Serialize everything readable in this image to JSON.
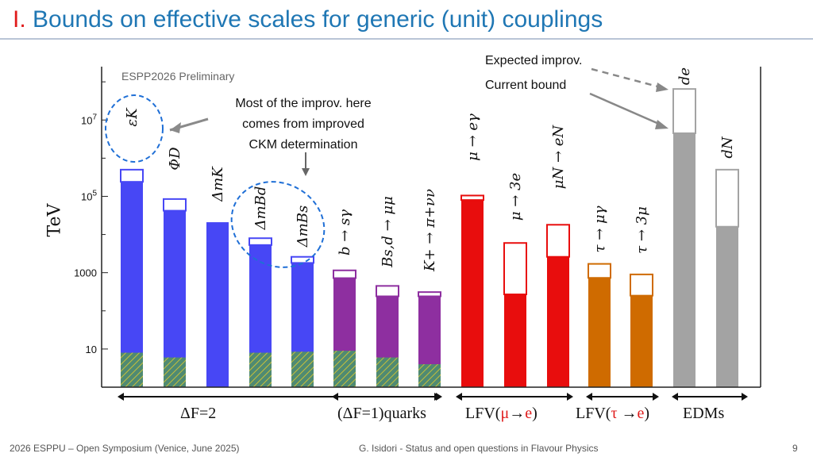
{
  "title": {
    "roman": "I.",
    "text": "Bounds on effective scales for generic (unit) couplings"
  },
  "annotations": {
    "preliminary": "ESPP2026 Preliminary",
    "expected": "Expected  improv.",
    "current": "Current bound",
    "note_lines": [
      "Most of the improv.  here",
      "comes from improved",
      "CKM determination"
    ]
  },
  "footer": {
    "left": "2026 ESPPU – Open Symposium (Venice, June 2025)",
    "center": "G. Isidori - Status and open questions in Flavour Physics",
    "page": "9"
  },
  "colors": {
    "blue": "#4747f5",
    "purple": "#8e2fa0",
    "red": "#e80d0d",
    "orange": "#cf6b00",
    "gray": "#a3a3a3",
    "hatch": "#4f8a72",
    "callout_blue": "#1f6fd6",
    "axis": "#222222"
  },
  "chart_data": {
    "type": "bar",
    "yscale": "log",
    "ylabel": "TeV",
    "ylim": [
      1,
      250000000
    ],
    "yticks": [
      {
        "value": 10,
        "label": "10"
      },
      {
        "value": 1000,
        "label": "1000"
      },
      {
        "value": 100000,
        "label": "10^5"
      },
      {
        "value": 10000000,
        "label": "10^7"
      }
    ],
    "bars": [
      {
        "label": "εK",
        "current": 240000,
        "expected": 500000,
        "hatched": 8,
        "color": "blue",
        "group": 0
      },
      {
        "label": "ΦD",
        "current": 42000,
        "expected": 85000,
        "hatched": 6,
        "color": "blue",
        "group": 0
      },
      {
        "label": "ΔmK",
        "current": 21000,
        "expected": 21000,
        "hatched": 0,
        "color": "blue",
        "group": 0
      },
      {
        "label": "ΔmBd",
        "current": 5300,
        "expected": 8000,
        "hatched": 8,
        "color": "blue",
        "group": 0
      },
      {
        "label": "ΔmBs",
        "current": 1800,
        "expected": 2600,
        "hatched": 8.5,
        "color": "blue",
        "group": 0
      },
      {
        "label": "b → sγ",
        "current": 720,
        "expected": 1150,
        "hatched": 9,
        "color": "purple",
        "group": 1
      },
      {
        "label": "Bs,d → μμ",
        "current": 240,
        "expected": 450,
        "hatched": 6,
        "color": "purple",
        "group": 1
      },
      {
        "label": "K+ → π+νν",
        "current": 240,
        "expected": 310,
        "hatched": 4,
        "color": "purple",
        "group": 1
      },
      {
        "label": "μ → eγ",
        "current": 80000,
        "expected": 105000,
        "hatched": 0,
        "color": "red",
        "group": 2
      },
      {
        "label": "μ → 3e",
        "current": 270,
        "expected": 6000,
        "hatched": 0,
        "color": "red",
        "group": 2
      },
      {
        "label": "μN → eN",
        "current": 2600,
        "expected": 18000,
        "hatched": 0,
        "color": "red",
        "group": 2
      },
      {
        "label": "τ → μγ",
        "current": 730,
        "expected": 1700,
        "hatched": 0,
        "color": "orange",
        "group": 3
      },
      {
        "label": "τ → 3μ",
        "current": 250,
        "expected": 900,
        "hatched": 0,
        "color": "orange",
        "group": 3
      },
      {
        "label": "de",
        "current": 4500000,
        "expected": 65000000,
        "hatched": 0,
        "color": "gray",
        "group": 4
      },
      {
        "label": "dN",
        "current": 16000,
        "expected": 500000,
        "hatched": 0,
        "color": "gray",
        "group": 4
      }
    ],
    "groups": [
      "ΔF=2",
      "(ΔF=1)quarks",
      "LFV(μ→e)",
      "LFV(τ →e)",
      "EDMs"
    ]
  }
}
